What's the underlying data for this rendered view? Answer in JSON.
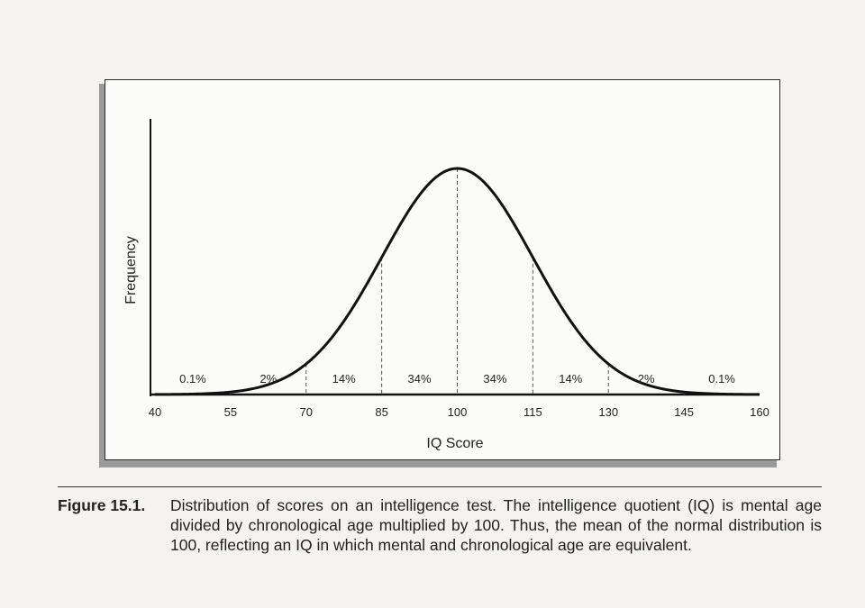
{
  "chart_data": {
    "type": "area",
    "distribution": "normal",
    "mean": 100,
    "sd": 15,
    "xlabel": "IQ Score",
    "ylabel": "Frequency",
    "xlim": [
      40,
      160
    ],
    "x_ticks": [
      40,
      55,
      70,
      85,
      100,
      115,
      130,
      145,
      160
    ],
    "x_tick_labels": [
      "40",
      "55",
      "70",
      "85",
      "100",
      "115",
      "130",
      "145",
      "160"
    ],
    "dashed_dividers_at": [
      55,
      70,
      85,
      100,
      115,
      130,
      145
    ],
    "regions": [
      {
        "from": 40,
        "to": 55,
        "label": "0.1%"
      },
      {
        "from": 55,
        "to": 70,
        "label": "2%"
      },
      {
        "from": 70,
        "to": 85,
        "label": "14%"
      },
      {
        "from": 85,
        "to": 100,
        "label": "34%"
      },
      {
        "from": 100,
        "to": 115,
        "label": "34%"
      },
      {
        "from": 115,
        "to": 130,
        "label": "14%"
      },
      {
        "from": 130,
        "to": 145,
        "label": "2%"
      },
      {
        "from": 145,
        "to": 160,
        "label": "0.1%"
      }
    ],
    "grid": false,
    "legend": "none"
  },
  "caption": {
    "label": "Figure 15.1.",
    "text": "Distribution of scores on an intelligence test. The intelligence quotient (IQ) is mental age divided by chronological age multiplied by 100. Thus, the mean of the normal distribution is 100, reflecting an IQ in which mental and chronological age are equivalent."
  }
}
